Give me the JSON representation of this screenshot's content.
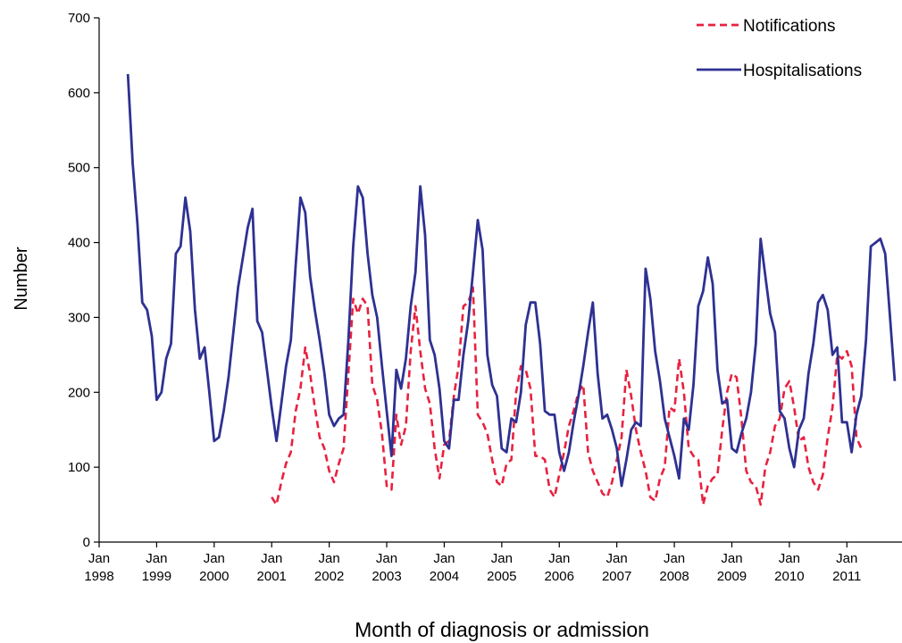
{
  "chart_data": {
    "type": "line",
    "xlabel": "Month of diagnosis or admission",
    "ylabel": "Number",
    "ylim": [
      0,
      700
    ],
    "yticks": [
      "0",
      "100",
      "200",
      "300",
      "400",
      "500",
      "600",
      "700"
    ],
    "x_tick_months": [
      "Jan",
      "Jan",
      "Jan",
      "Jan",
      "Jan",
      "Jan",
      "Jan",
      "Jan",
      "Jan",
      "Jan",
      "Jan",
      "Jan",
      "Jan",
      "Jan"
    ],
    "x_tick_years": [
      "1998",
      "1999",
      "2000",
      "2001",
      "2002",
      "2003",
      "2004",
      "2005",
      "2006",
      "2007",
      "2008",
      "2009",
      "2010",
      "2011"
    ],
    "legend_position": "top-right",
    "grid": false,
    "series": [
      {
        "name": "Notifications",
        "color": "#e8213f",
        "style": "dashed",
        "start": "2001-01",
        "values": [
          60,
          50,
          80,
          105,
          120,
          175,
          205,
          260,
          225,
          180,
          140,
          125,
          95,
          80,
          105,
          125,
          225,
          325,
          305,
          325,
          315,
          210,
          190,
          145,
          75,
          70,
          170,
          130,
          155,
          255,
          315,
          255,
          205,
          185,
          125,
          85,
          130,
          135,
          195,
          235,
          315,
          320,
          340,
          170,
          160,
          145,
          110,
          80,
          75,
          105,
          110,
          200,
          235,
          230,
          205,
          115,
          115,
          110,
          70,
          60,
          90,
          120,
          155,
          175,
          200,
          210,
          120,
          95,
          80,
          65,
          60,
          80,
          110,
          140,
          230,
          195,
          150,
          120,
          95,
          60,
          55,
          85,
          100,
          180,
          175,
          245,
          200,
          125,
          115,
          110,
          50,
          75,
          85,
          90,
          150,
          200,
          225,
          220,
          165,
          95,
          80,
          75,
          50,
          100,
          120,
          155,
          165,
          205,
          215,
          180,
          135,
          140,
          100,
          80,
          70,
          90,
          140,
          180,
          250,
          245,
          255,
          235,
          140,
          125
        ]
      },
      {
        "name": "Hospitalisations",
        "color": "#2e3192",
        "style": "solid",
        "start": "1998-07",
        "values": [
          625,
          505,
          425,
          320,
          310,
          275,
          190,
          200,
          245,
          265,
          385,
          395,
          460,
          415,
          310,
          245,
          260,
          200,
          135,
          140,
          175,
          220,
          280,
          340,
          380,
          420,
          445,
          295,
          280,
          230,
          180,
          135,
          185,
          235,
          270,
          370,
          460,
          440,
          355,
          310,
          270,
          225,
          170,
          155,
          165,
          170,
          270,
          395,
          475,
          460,
          385,
          330,
          300,
          235,
          175,
          115,
          230,
          205,
          245,
          315,
          360,
          475,
          410,
          270,
          250,
          205,
          135,
          125,
          190,
          190,
          250,
          295,
          360,
          430,
          390,
          250,
          210,
          195,
          125,
          120,
          165,
          160,
          200,
          290,
          320,
          320,
          265,
          175,
          170,
          170,
          120,
          95,
          120,
          160,
          195,
          235,
          280,
          320,
          225,
          165,
          170,
          150,
          125,
          75,
          110,
          150,
          160,
          155,
          365,
          325,
          255,
          215,
          165,
          140,
          115,
          85,
          165,
          150,
          210,
          315,
          335,
          380,
          345,
          230,
          185,
          190,
          125,
          120,
          145,
          165,
          200,
          265,
          405,
          355,
          305,
          280,
          175,
          165,
          125,
          100,
          150,
          165,
          225,
          265,
          320,
          330,
          310,
          250,
          260,
          160,
          160,
          120,
          170,
          195,
          270,
          395,
          400,
          405,
          385,
          300,
          215
        ]
      }
    ]
  }
}
